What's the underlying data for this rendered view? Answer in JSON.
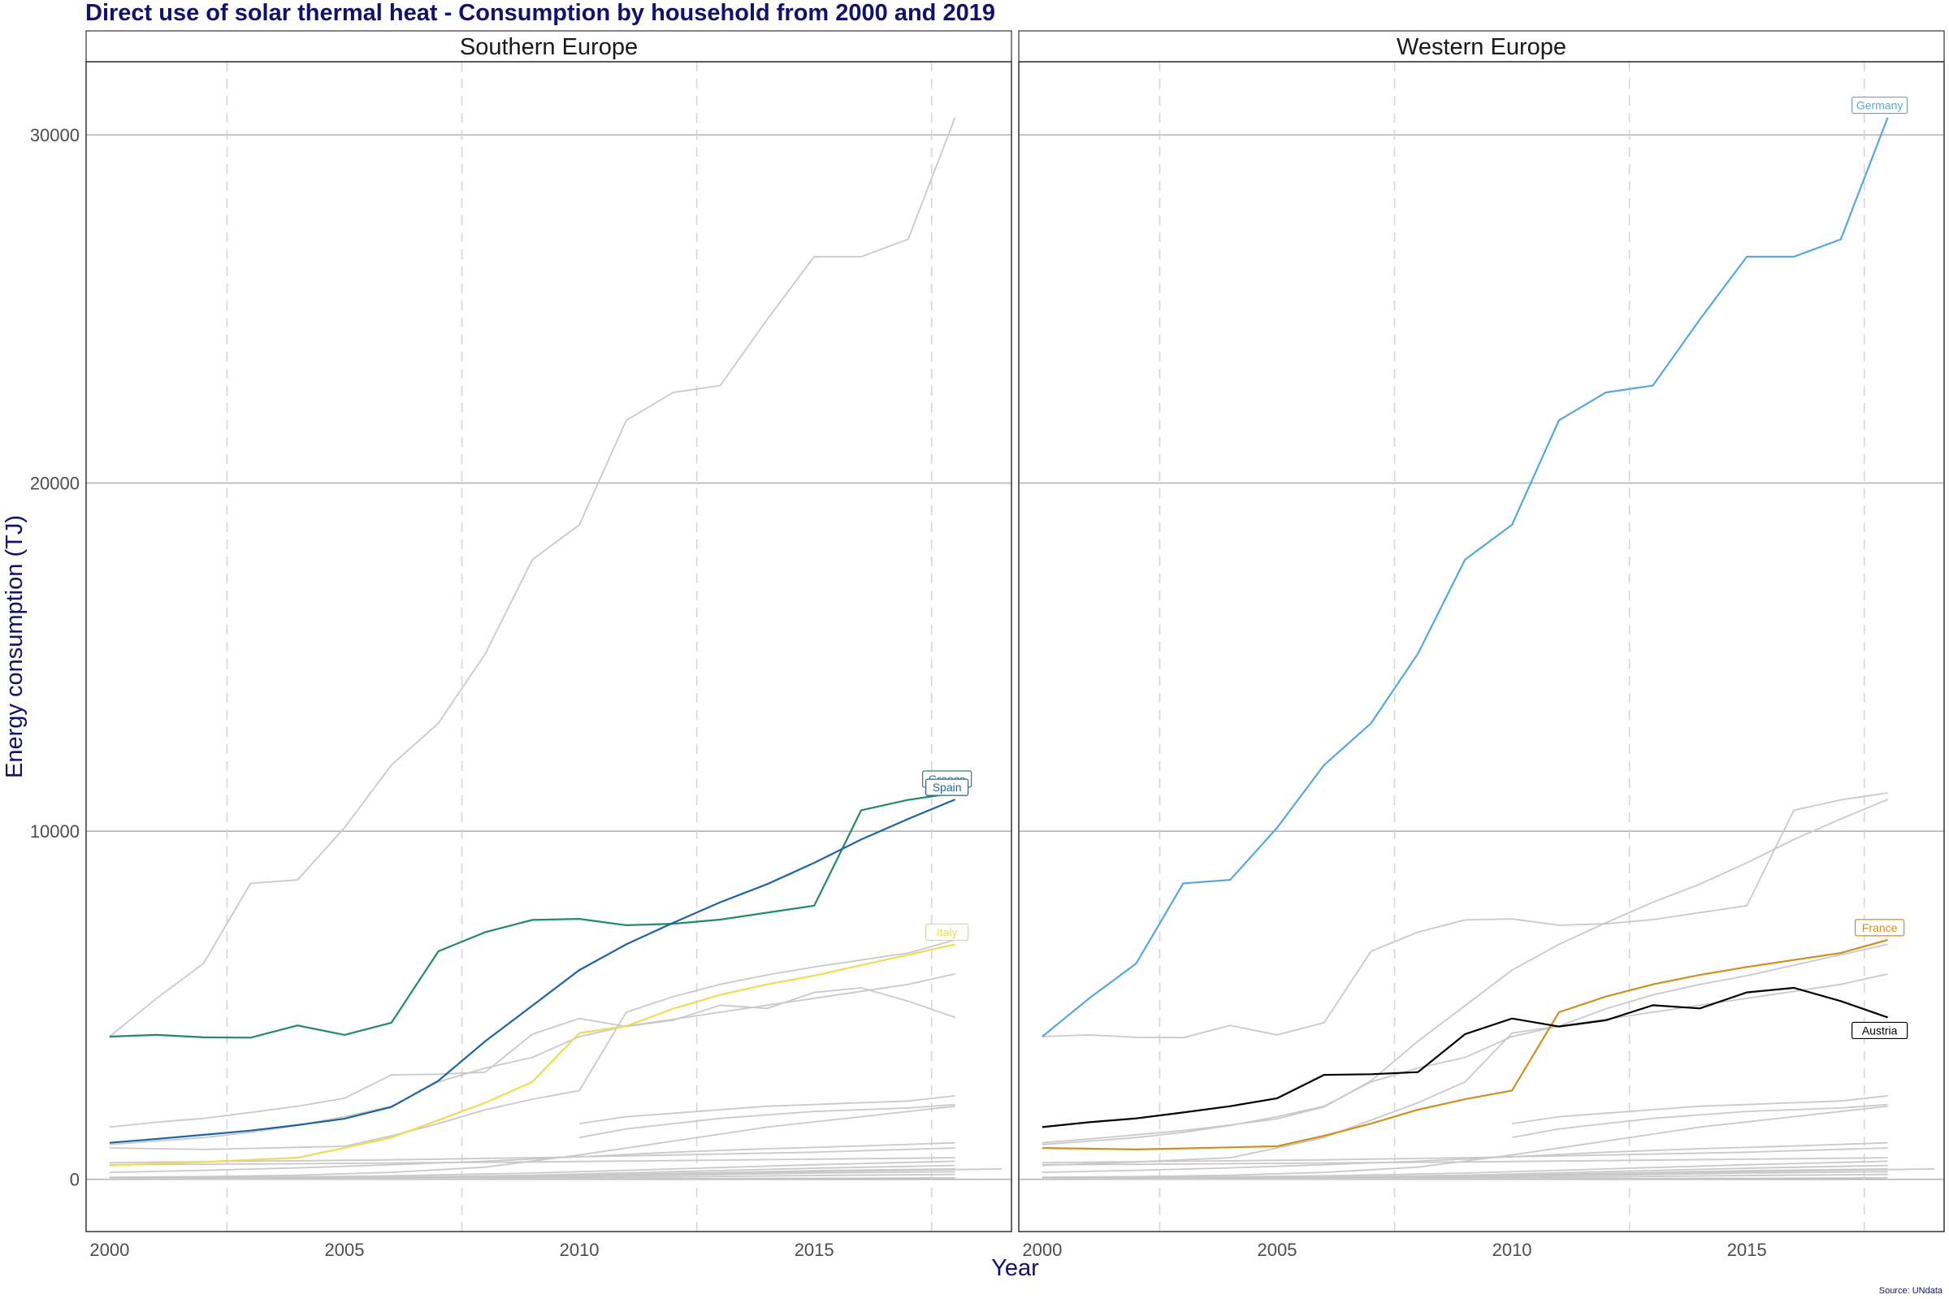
{
  "chart_data": {
    "type": "line",
    "title": "Direct use of solar thermal heat - Consumption by household from 2000 and 2019",
    "xlabel": "Year",
    "ylabel": "Energy consumption (TJ)",
    "caption": "Source: UNdata",
    "xlim": [
      1999.5,
      2019.2
    ],
    "ylim": [
      -1500,
      32100
    ],
    "x_ticks": [
      2000,
      2005,
      2010,
      2015
    ],
    "y_ticks": [
      0,
      10000,
      20000,
      30000
    ],
    "y_tick_labels": [
      "0",
      "10000",
      "20000",
      "30000"
    ],
    "x_tick_labels": [
      "2000",
      "2005",
      "2010",
      "2015"
    ],
    "panels": [
      {
        "name": "Southern Europe",
        "highlight": [
          "Greece",
          "Spain",
          "Italy"
        ]
      },
      {
        "name": "Western Europe",
        "highlight": [
          "Germany",
          "France",
          "Austria"
        ]
      }
    ],
    "series": [
      {
        "name": "Germany",
        "color": "#56a8d8",
        "label_dx": 0,
        "label_dy": -15,
        "x": [
          2000,
          2001,
          2002,
          2003,
          2004,
          2005,
          2006,
          2007,
          2008,
          2009,
          2010,
          2011,
          2012,
          2013,
          2014,
          2015,
          2016,
          2017,
          2018
        ],
        "values": [
          4100,
          5200,
          6200,
          8500,
          8600,
          10100,
          11900,
          13100,
          15100,
          17800,
          18800,
          21800,
          22600,
          22800,
          24700,
          26500,
          26500,
          27000,
          30500
        ]
      },
      {
        "name": "Greece",
        "color": "#23896b",
        "label_dx": 0,
        "label_dy": -17,
        "x": [
          2000,
          2001,
          2002,
          2003,
          2004,
          2005,
          2006,
          2007,
          2008,
          2009,
          2010,
          2011,
          2012,
          2013,
          2014,
          2015,
          2016,
          2017,
          2018
        ],
        "values": [
          4100,
          4150,
          4080,
          4070,
          4420,
          4150,
          4500,
          6550,
          7100,
          7450,
          7480,
          7300,
          7340,
          7460,
          7660,
          7860,
          10600,
          10900,
          11100
        ]
      },
      {
        "name": "Spain",
        "color": "#1f64a0",
        "label_dx": 0,
        "label_dy": -15,
        "x": [
          2000,
          2001,
          2002,
          2003,
          2004,
          2005,
          2006,
          2007,
          2008,
          2009,
          2010,
          2011,
          2012,
          2013,
          2014,
          2015,
          2016,
          2017,
          2018
        ],
        "values": [
          1050,
          1160,
          1280,
          1400,
          1560,
          1740,
          2080,
          2830,
          3970,
          4990,
          6010,
          6750,
          7370,
          7960,
          8480,
          9090,
          9760,
          10350,
          10910
        ]
      },
      {
        "name": "Italy",
        "color": "#eddc55",
        "label_dx": 0,
        "label_dy": -15,
        "x": [
          2000,
          2001,
          2002,
          2003,
          2004,
          2005,
          2006,
          2007,
          2008,
          2009,
          2010,
          2011,
          2012,
          2013,
          2014,
          2015,
          2016,
          2017,
          2018
        ],
        "values": [
          400,
          450,
          500,
          560,
          620,
          900,
          1200,
          1700,
          2200,
          2800,
          4200,
          4400,
          4900,
          5300,
          5600,
          5850,
          6150,
          6450,
          6750
        ]
      },
      {
        "name": "France",
        "color": "#cf8f1e",
        "label_dx": 0,
        "label_dy": -15,
        "x": [
          2000,
          2001,
          2002,
          2003,
          2004,
          2005,
          2006,
          2007,
          2008,
          2009,
          2010,
          2011,
          2012,
          2013,
          2014,
          2015,
          2016,
          2017,
          2018
        ],
        "values": [
          900,
          880,
          860,
          890,
          920,
          950,
          1250,
          1600,
          2000,
          2300,
          2550,
          4800,
          5250,
          5600,
          5870,
          6100,
          6300,
          6500,
          6880
        ]
      },
      {
        "name": "Austria",
        "color": "#000000",
        "label_dx": 0,
        "label_dy": 16,
        "x": [
          2000,
          2001,
          2002,
          2003,
          2004,
          2005,
          2006,
          2007,
          2008,
          2009,
          2010,
          2011,
          2012,
          2013,
          2014,
          2015,
          2016,
          2017,
          2018
        ],
        "values": [
          1500,
          1640,
          1750,
          1920,
          2100,
          2330,
          3000,
          3020,
          3080,
          4170,
          4620,
          4390,
          4570,
          5000,
          4910,
          5370,
          5500,
          5120,
          4650
        ]
      },
      {
        "name": "",
        "x": [
          2000,
          2001,
          2002,
          2003,
          2004,
          2005,
          2006,
          2007,
          2008,
          2009,
          2010,
          2011,
          2012,
          2013,
          2014,
          2015,
          2016,
          2017,
          2018
        ],
        "values": [
          1000,
          1100,
          1200,
          1350,
          1550,
          1800,
          2100,
          2800,
          3200,
          3500,
          4100,
          4400,
          4600,
          4800,
          5000,
          5200,
          5400,
          5600,
          5900
        ]
      },
      {
        "name": "",
        "x": [
          2010,
          2011,
          2012,
          2013,
          2014,
          2015,
          2016,
          2017,
          2018
        ],
        "values": [
          1600,
          1800,
          1900,
          2000,
          2100,
          2150,
          2200,
          2250,
          2400
        ]
      },
      {
        "name": "",
        "x": [
          2010,
          2011,
          2012,
          2013,
          2014,
          2015,
          2016,
          2017,
          2018
        ],
        "values": [
          1200,
          1450,
          1600,
          1750,
          1850,
          1950,
          2000,
          2050,
          2150
        ]
      },
      {
        "name": "",
        "x": [
          2000,
          2002,
          2004,
          2006,
          2008,
          2010,
          2012,
          2014,
          2016,
          2018
        ],
        "values": [
          60,
          80,
          120,
          200,
          350,
          700,
          1100,
          1500,
          1800,
          2100
        ]
      },
      {
        "name": "",
        "x": [
          2000,
          2002,
          2004,
          2006,
          2008,
          2010,
          2012,
          2014,
          2016,
          2018
        ],
        "values": [
          200,
          260,
          330,
          420,
          520,
          650,
          780,
          880,
          960,
          1050
        ]
      },
      {
        "name": "",
        "x": [
          2000,
          2003,
          2006,
          2009,
          2012,
          2015,
          2018
        ],
        "values": [
          480,
          520,
          560,
          620,
          700,
          780,
          900
        ]
      },
      {
        "name": "",
        "x": [
          2000,
          2003,
          2006,
          2009,
          2012,
          2015,
          2018
        ],
        "values": [
          420,
          440,
          470,
          500,
          540,
          580,
          620
        ]
      },
      {
        "name": "",
        "x": [
          2000,
          2003,
          2006,
          2009,
          2012,
          2015,
          2018
        ],
        "values": [
          30,
          60,
          100,
          180,
          300,
          420,
          520
        ]
      },
      {
        "name": "",
        "x": [
          2000,
          2003,
          2006,
          2009,
          2012,
          2015,
          2018
        ],
        "values": [
          10,
          30,
          60,
          120,
          220,
          320,
          400
        ]
      },
      {
        "name": "",
        "x": [
          2000,
          2003,
          2006,
          2009,
          2012,
          2015,
          2018
        ],
        "values": [
          5,
          15,
          40,
          90,
          170,
          250,
          300
        ]
      },
      {
        "name": "",
        "x": [
          2000,
          2003,
          2006,
          2009,
          2012,
          2015,
          2018
        ],
        "values": [
          0,
          5,
          20,
          60,
          120,
          180,
          220
        ]
      },
      {
        "name": "",
        "x": [
          2000,
          2003,
          2006,
          2009,
          2012,
          2015,
          2018
        ],
        "values": [
          0,
          2,
          10,
          30,
          70,
          110,
          140
        ]
      },
      {
        "name": "",
        "x": [
          2009,
          2012,
          2015,
          2018,
          2019
        ],
        "values": [
          50,
          150,
          220,
          280,
          300
        ]
      },
      {
        "name": "",
        "x": [
          2000,
          2005,
          2010,
          2015,
          2018
        ],
        "values": [
          0,
          5,
          15,
          30,
          40
        ]
      }
    ]
  }
}
